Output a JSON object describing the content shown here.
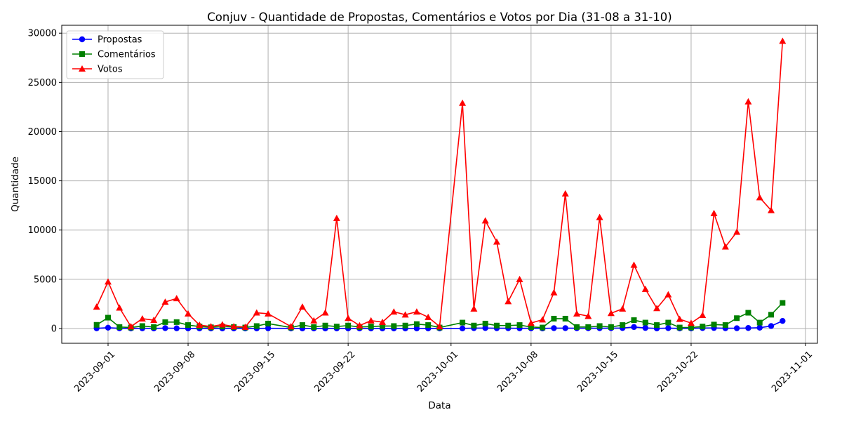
{
  "chart_data": {
    "type": "line",
    "title": "Conjuv - Quantidade de Propostas, Comentários e Votos por Dia (31-08 a 31-10)",
    "xlabel": "Data",
    "ylabel": "Quantidade",
    "x_tick_labels": [
      "2023-09-01",
      "2023-09-08",
      "2023-09-15",
      "2023-09-22",
      "2023-10-01",
      "2023-10-08",
      "2023-10-15",
      "2023-10-22",
      "2023-11-01"
    ],
    "y_tick_labels": [
      "0",
      "5000",
      "10000",
      "15000",
      "20000",
      "25000",
      "30000"
    ],
    "ylim": [
      -1500,
      30800
    ],
    "grid": true,
    "legend_position": "top-left",
    "x": [
      "2023-08-31",
      "2023-09-01",
      "2023-09-02",
      "2023-09-03",
      "2023-09-04",
      "2023-09-05",
      "2023-09-06",
      "2023-09-07",
      "2023-09-08",
      "2023-09-09",
      "2023-09-10",
      "2023-09-11",
      "2023-09-12",
      "2023-09-13",
      "2023-09-14",
      "2023-09-15",
      "2023-09-17",
      "2023-09-18",
      "2023-09-19",
      "2023-09-20",
      "2023-09-21",
      "2023-09-22",
      "2023-09-23",
      "2023-09-24",
      "2023-09-25",
      "2023-09-26",
      "2023-09-27",
      "2023-09-28",
      "2023-09-29",
      "2023-09-30",
      "2023-10-02",
      "2023-10-03",
      "2023-10-04",
      "2023-10-05",
      "2023-10-06",
      "2023-10-07",
      "2023-10-08",
      "2023-10-09",
      "2023-10-10",
      "2023-10-11",
      "2023-10-12",
      "2023-10-13",
      "2023-10-14",
      "2023-10-15",
      "2023-10-16",
      "2023-10-17",
      "2023-10-18",
      "2023-10-19",
      "2023-10-20",
      "2023-10-21",
      "2023-10-22",
      "2023-10-23",
      "2023-10-24",
      "2023-10-25",
      "2023-10-26",
      "2023-10-27",
      "2023-10-28",
      "2023-10-29",
      "2023-10-30"
    ],
    "series": [
      {
        "name": "Propostas",
        "color": "#0000ff",
        "marker": "circle",
        "values": [
          20,
          80,
          20,
          10,
          20,
          10,
          40,
          20,
          10,
          10,
          10,
          10,
          10,
          10,
          10,
          20,
          10,
          10,
          10,
          10,
          10,
          10,
          10,
          10,
          10,
          10,
          10,
          10,
          10,
          10,
          10,
          40,
          50,
          30,
          30,
          20,
          20,
          10,
          40,
          40,
          30,
          30,
          30,
          40,
          50,
          150,
          60,
          10,
          40,
          10,
          10,
          50,
          60,
          30,
          30,
          50,
          80,
          250,
          770
        ]
      },
      {
        "name": "Comentários",
        "color": "#008000",
        "marker": "square",
        "values": [
          370,
          1100,
          150,
          100,
          250,
          150,
          650,
          650,
          350,
          200,
          120,
          200,
          150,
          100,
          250,
          500,
          100,
          350,
          150,
          300,
          200,
          300,
          150,
          200,
          250,
          250,
          300,
          450,
          350,
          100,
          600,
          300,
          500,
          300,
          300,
          350,
          150,
          100,
          1000,
          1000,
          150,
          150,
          250,
          150,
          350,
          850,
          600,
          350,
          600,
          100,
          100,
          200,
          400,
          350,
          1050,
          1600,
          600,
          1400,
          2600
        ]
      },
      {
        "name": "Votos",
        "color": "#ff0000",
        "marker": "triangle",
        "values": [
          2200,
          4750,
          2100,
          200,
          1000,
          850,
          2700,
          3050,
          1500,
          350,
          200,
          400,
          200,
          150,
          1600,
          1500,
          200,
          2200,
          800,
          1600,
          11200,
          1050,
          300,
          800,
          650,
          1700,
          1400,
          1700,
          1150,
          200,
          22900,
          2000,
          10950,
          8800,
          2750,
          5000,
          550,
          900,
          3650,
          13700,
          1500,
          1250,
          11300,
          1550,
          2000,
          6450,
          4000,
          2050,
          3450,
          950,
          550,
          1350,
          11700,
          8300,
          9800,
          23050,
          13300,
          12000,
          29200
        ]
      }
    ]
  }
}
